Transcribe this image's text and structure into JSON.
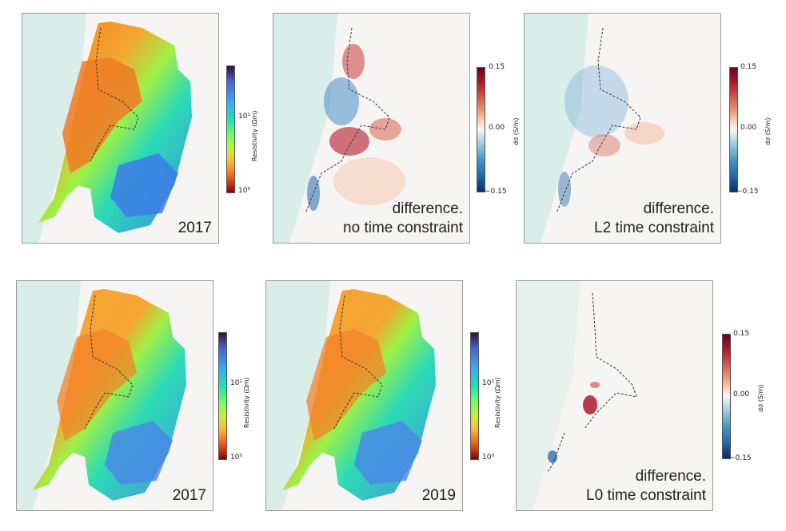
{
  "panels": [
    {
      "id": "p1",
      "type": "resistivity",
      "caption": [
        "2017"
      ],
      "colorbar": {
        "label": "Resistivity (Ωm)",
        "ticks": [
          "10¹",
          "10⁰"
        ]
      }
    },
    {
      "id": "p2",
      "type": "difference",
      "caption": [
        "difference.",
        "no time constraint"
      ],
      "colorbar": {
        "label": "dσ (S/m)",
        "ticks": [
          "0.15",
          "0.00",
          "−0.15"
        ]
      }
    },
    {
      "id": "p3",
      "type": "difference",
      "caption": [
        "difference.",
        "L2 time constraint"
      ],
      "colorbar": {
        "label": "dσ (S/m)",
        "ticks": [
          "0.15",
          "0.00",
          "−0.15"
        ]
      }
    },
    {
      "id": "p4",
      "type": "resistivity",
      "caption": [
        "2017"
      ],
      "colorbar": {
        "label": "Resistivity (Ωm)",
        "ticks": [
          "10¹",
          "10⁰"
        ]
      }
    },
    {
      "id": "p5",
      "type": "resistivity",
      "caption": [
        "2019"
      ],
      "colorbar": {
        "label": "Resistivity (Ωm)",
        "ticks": [
          "10¹",
          "10⁰"
        ]
      }
    },
    {
      "id": "p6",
      "type": "difference",
      "caption": [
        "difference.",
        "L0 time constraint"
      ],
      "colorbar": {
        "label": "dσ (S/m)",
        "ticks": [
          "0.15",
          "0.00",
          "−0.15"
        ]
      }
    }
  ],
  "colors": {
    "sea": "#d9ede9",
    "land": "#f4f3f0",
    "coastline": "#333333",
    "diff_positive": "#b2182b",
    "diff_negative": "#2166ac"
  }
}
